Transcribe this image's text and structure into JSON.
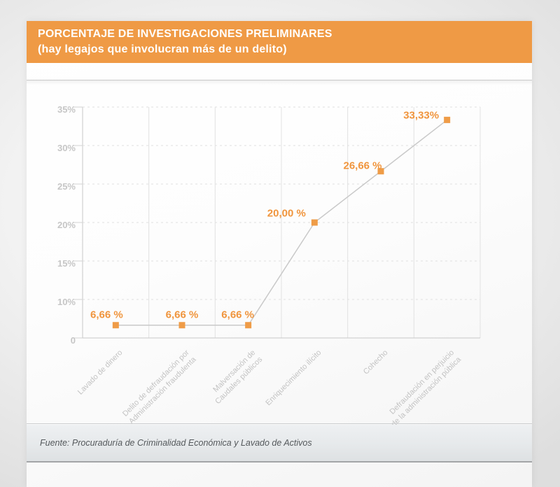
{
  "header": {
    "title_line1": "PORCENTAJE DE INVESTIGACIONES PRELIMINARES",
    "title_line2": "(hay legajos que involucran más de un delito)"
  },
  "footer": {
    "source": "Fuente: Procuraduría de Criminalidad Económica y Lavado de Activos"
  },
  "colors": {
    "header_bg": "#EF9A45",
    "data_label": "#F0953D",
    "marker": "#EF9C47",
    "line": "#C9C9C9",
    "grid": "#E2E2E2",
    "grid_dashed": "#E0E0E0",
    "axis": "#C8C8C8",
    "tick_mark": "#D2D2D2",
    "tick_text": "#C6C6C6",
    "category_text": "#C3C3C3"
  },
  "chart_data": {
    "type": "line",
    "title": "PORCENTAJE DE INVESTIGACIONES PRELIMINARES (hay legajos que involucran más de un delito)",
    "categories": [
      [
        "Lavado de dinero"
      ],
      [
        "Delito de defraudación por",
        "Administración fraudulenta"
      ],
      [
        "Malversación de",
        "Caudales públicos"
      ],
      [
        "Enriquecimiento ilícito"
      ],
      [
        "Cohecho"
      ],
      [
        "Defraudación en perjuicio",
        "de la administración pública"
      ]
    ],
    "values": [
      6.66,
      6.66,
      6.66,
      20.0,
      26.66,
      33.33
    ],
    "point_labels": [
      "6,66 %",
      "6,66 %",
      "6,66 %",
      "20,00 %",
      "26,66 %",
      "33,33%"
    ],
    "y_ticks": [
      "35%",
      "30%",
      "25%",
      "20%",
      "15%",
      "10%",
      "0"
    ],
    "ylim": [
      0,
      35
    ],
    "grid": true,
    "legend": false,
    "marker_shape": "square"
  }
}
